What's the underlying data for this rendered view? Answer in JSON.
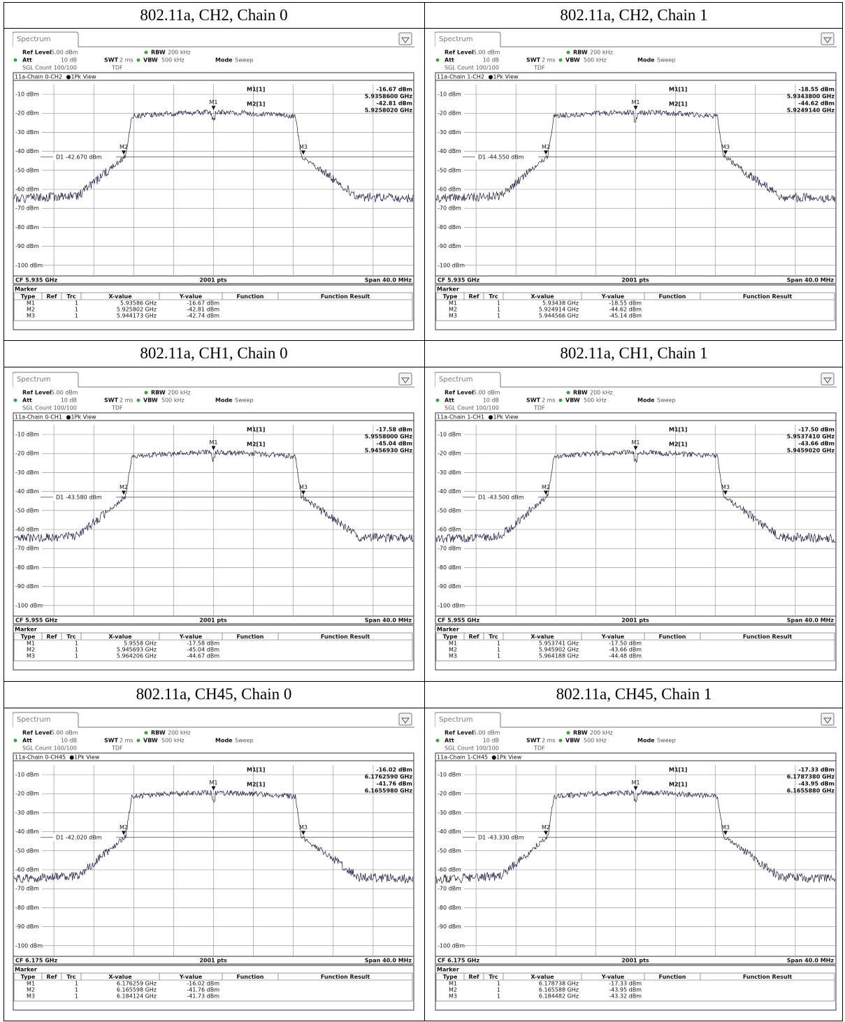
{
  "common": {
    "tab": "Spectrum",
    "ref_level_label": "Ref Level",
    "ref_level": "-5.00 dBm",
    "rbw_label": "RBW",
    "rbw": "200 kHz",
    "att_label": "Att",
    "att": "10 dB",
    "swt_label": "SWT",
    "swt": "2 ms",
    "vbw_label": "VBW",
    "vbw": "500 kHz",
    "mode_label": "Mode",
    "mode": "Sweep",
    "sgl": "SGL Count 100/100",
    "tdf": "TDF",
    "view": "●1Pk View",
    "y_labels": [
      "-10 dBm",
      "-20 dBm",
      "-30 dBm",
      "-40 dBm",
      "-50 dBm",
      "-60 dBm",
      "-70 dBm",
      "-80 dBm",
      "-90 dBm",
      "-100 dBm"
    ],
    "points": "2001 pts",
    "span": "Span 40.0 MHz",
    "marker_title": "Marker",
    "marker_columns": [
      "Type",
      "Ref",
      "Trc",
      "X-value",
      "Y-value",
      "Function",
      "Function Result"
    ],
    "readout_labels": [
      "M1[1]",
      "M2[1]"
    ],
    "marker_names": [
      "M1",
      "M2",
      "M3"
    ],
    "trc": "1"
  },
  "panels": [
    {
      "caption": "802.11a, CH2, Chain 0",
      "trace": "11a-Chain 0-CH2",
      "readout": [
        "-16.67 dBm",
        "5.9358600 GHz",
        "-42.81 dBm",
        "5.9258020 GHz"
      ],
      "d1": "D1 -42.670 dBm",
      "cf": "CF 5.935 GHz",
      "markers": [
        [
          "5.93586 GHz",
          "-16.67 dBm"
        ],
        [
          "5.925802 GHz",
          "-42.81 dBm"
        ],
        [
          "5.944173 GHz",
          "-42.74 dBm"
        ]
      ]
    },
    {
      "caption": "802.11a, CH2, Chain 1",
      "trace": "11a-Chain 1-CH2",
      "readout": [
        "-18.55 dBm",
        "5.9343800 GHz",
        "-44.62 dBm",
        "5.9249140 GHz"
      ],
      "d1": "D1 -44.550 dBm",
      "cf": "CF 5.935 GHz",
      "markers": [
        [
          "5.93438 GHz",
          "-18.55 dBm"
        ],
        [
          "5.924914 GHz",
          "-44.62 dBm"
        ],
        [
          "5.944566 GHz",
          "-45.14 dBm"
        ]
      ]
    },
    {
      "caption": "802.11a, CH1, Chain 0",
      "trace": "11a-Chain 0-CH1",
      "readout": [
        "-17.58 dBm",
        "5.9558000 GHz",
        "-45.04 dBm",
        "5.9456930 GHz"
      ],
      "d1": "D1 -43.580 dBm",
      "cf": "CF 5.955 GHz",
      "markers": [
        [
          "5.9558 GHz",
          "-17.58 dBm"
        ],
        [
          "5.945693 GHz",
          "-45.04 dBm"
        ],
        [
          "5.964206 GHz",
          "-44.67 dBm"
        ]
      ]
    },
    {
      "caption": "802.11a, CH1, Chain 1",
      "trace": "11a-Chain 1-CH1",
      "readout": [
        "-17.50 dBm",
        "5.9537410 GHz",
        "-43.66 dBm",
        "5.9459020 GHz"
      ],
      "d1": "D1 -43.500 dBm",
      "cf": "CF 5.955 GHz",
      "markers": [
        [
          "5.953741 GHz",
          "-17.50 dBm"
        ],
        [
          "5.945902 GHz",
          "-43.66 dBm"
        ],
        [
          "5.964188 GHz",
          "-44.48 dBm"
        ]
      ]
    },
    {
      "caption": "802.11a, CH45, Chain 0",
      "trace": "11a-Chain 0-CH45",
      "readout": [
        "-16.02 dBm",
        "6.1762590 GHz",
        "-41.76 dBm",
        "6.1655980 GHz"
      ],
      "d1": "D1 -42.020 dBm",
      "cf": "CF 6.175 GHz",
      "markers": [
        [
          "6.176259 GHz",
          "-16.02 dBm"
        ],
        [
          "6.165598 GHz",
          "-41.76 dBm"
        ],
        [
          "6.184124 GHz",
          "-41.73 dBm"
        ]
      ]
    },
    {
      "caption": "802.11a, CH45, Chain 1",
      "trace": "11a-Chain 1-CH45",
      "readout": [
        "-17.33 dBm",
        "6.1787380 GHz",
        "-43.95 dBm",
        "6.1655880 GHz"
      ],
      "d1": "D1 -43.330 dBm",
      "cf": "CF 6.175 GHz",
      "markers": [
        [
          "6.178738 GHz",
          "-17.33 dBm"
        ],
        [
          "6.165588 GHz",
          "-43.95 dBm"
        ],
        [
          "6.184482 GHz",
          "-43.32 dBm"
        ]
      ]
    }
  ]
}
